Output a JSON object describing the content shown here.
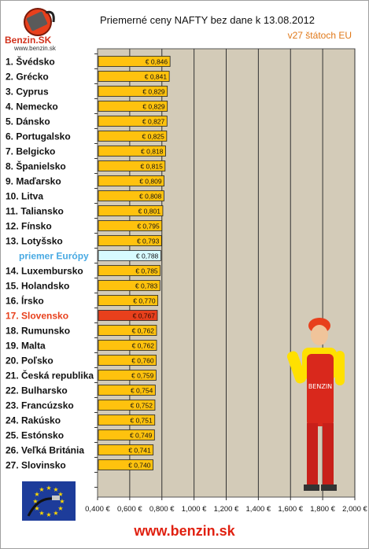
{
  "header": {
    "title": "Priemerné ceny NAFTY bez dane k 13.08.2012",
    "subtitle": "v27 štátoch EU",
    "logo_text": "Benzin.SK",
    "logo_url": "www.benzin.sk"
  },
  "footer": {
    "url": "www.benzin.sk"
  },
  "colors": {
    "bar": "#ffc20e",
    "bar_highlight": "#e8401c",
    "bar_average": "#d8fbff",
    "plot_background": "#d3cbb8",
    "label_highlight": "#e8401c",
    "label_average": "#49aae3"
  },
  "chart_data": {
    "type": "bar",
    "orientation": "horizontal",
    "title": "Priemerné ceny NAFTY bez dane k 13.08.2012",
    "subtitle": "v27 štátoch EU",
    "xlim": [
      0.4,
      2.0
    ],
    "x_ticks": [
      0.4,
      0.6,
      0.8,
      1.0,
      1.2,
      1.4,
      1.6,
      1.8,
      2.0
    ],
    "x_tick_labels": [
      "0,400 €",
      "0,600 €",
      "0,800 €",
      "1,000 €",
      "1,200 €",
      "1,400 €",
      "1,600 €",
      "1,800 €",
      "2,000 €"
    ],
    "grid": "vertical",
    "categories": [
      "1. Švédsko",
      "2. Grécko",
      "3. Cyprus",
      "4. Nemecko",
      "5. Dánsko",
      "6. Portugalsko",
      "7. Belgicko",
      "8. Španielsko",
      "9. Maďarsko",
      "10. Litva",
      "11. Taliansko",
      "12. Fínsko",
      "13. Lotyšsko",
      "priemer Európy",
      "14. Luxembursko",
      "15. Holandsko",
      "16. Írsko",
      "17. Slovensko",
      "18. Rumunsko",
      "19. Malta",
      "20. Poľsko",
      "21. Česká republika",
      "22. Bulharsko",
      "23. Francúzsko",
      "24. Rakúsko",
      "25. Estónsko",
      "26. Veľká Británia",
      "27. Slovinsko"
    ],
    "values": [
      0.846,
      0.841,
      0.829,
      0.829,
      0.827,
      0.825,
      0.818,
      0.815,
      0.809,
      0.808,
      0.801,
      0.795,
      0.793,
      0.788,
      0.785,
      0.783,
      0.77,
      0.767,
      0.762,
      0.762,
      0.76,
      0.759,
      0.754,
      0.752,
      0.751,
      0.749,
      0.741,
      0.74
    ],
    "value_labels": [
      "€ 0,846",
      "€ 0,841",
      "€ 0,829",
      "€ 0,829",
      "€ 0,827",
      "€ 0,825",
      "€ 0,818",
      "€ 0,815",
      "€ 0,809",
      "€ 0,808",
      "€ 0,801",
      "€ 0,795",
      "€ 0,793",
      "€ 0,788",
      "€ 0,785",
      "€ 0,783",
      "€ 0,770",
      "€ 0,767",
      "€ 0,762",
      "€ 0,762",
      "€ 0,760",
      "€ 0,759",
      "€ 0,754",
      "€ 0,752",
      "€ 0,751",
      "€ 0,749",
      "€ 0,741",
      "€ 0,740"
    ],
    "highlight": "17. Slovensko",
    "average": "priemer Európy"
  }
}
